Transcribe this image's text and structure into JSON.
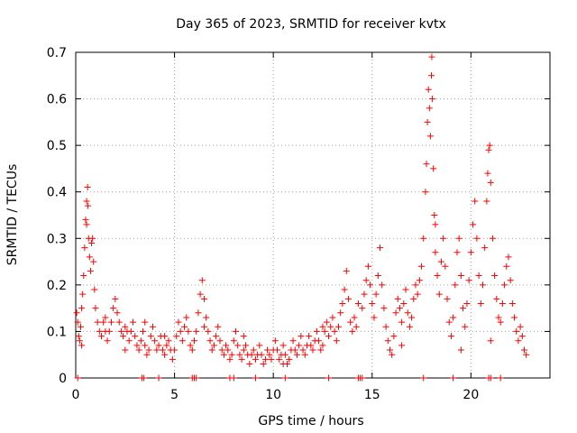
{
  "chart_data": {
    "type": "scatter",
    "title": "Day 365 of 2023, SRMTID for receiver kvtx",
    "xlabel": "GPS time / hours",
    "ylabel": "SRMTID / TECUs",
    "xlim": [
      0,
      24
    ],
    "ylim": [
      0,
      0.7
    ],
    "xticks": [
      0,
      5,
      10,
      15,
      20
    ],
    "yticks": [
      0,
      0.1,
      0.2,
      0.3,
      0.4,
      0.5,
      0.6,
      0.7
    ],
    "xtick_labels": [
      "0",
      "5",
      "10",
      "15",
      "20"
    ],
    "ytick_labels": [
      "0",
      "0.1",
      "0.2",
      "0.3",
      "0.4",
      "0.5",
      "0.6",
      "0.7"
    ],
    "grid": true,
    "marker": "+",
    "series": [
      {
        "name": "SRMTID",
        "color": "#ff0000",
        "points": [
          [
            0.05,
            0.14
          ],
          [
            0.1,
            0.12
          ],
          [
            0.15,
            0.09
          ],
          [
            0.2,
            0.08
          ],
          [
            0.25,
            0.11
          ],
          [
            0.3,
            0.15
          ],
          [
            0.35,
            0.18
          ],
          [
            0.4,
            0.22
          ],
          [
            0.45,
            0.28
          ],
          [
            0.5,
            0.34
          ],
          [
            0.55,
            0.38
          ],
          [
            0.6,
            0.41
          ],
          [
            0.62,
            0.37
          ],
          [
            0.65,
            0.3
          ],
          [
            0.7,
            0.26
          ],
          [
            0.75,
            0.23
          ],
          [
            0.8,
            0.29
          ],
          [
            0.85,
            0.3
          ],
          [
            0.9,
            0.25
          ],
          [
            0.95,
            0.19
          ],
          [
            1.0,
            0.15
          ],
          [
            1.1,
            0.12
          ],
          [
            1.2,
            0.1
          ],
          [
            1.3,
            0.09
          ],
          [
            1.4,
            0.12
          ],
          [
            1.5,
            0.1
          ],
          [
            1.6,
            0.08
          ],
          [
            1.7,
            0.1
          ],
          [
            1.8,
            0.12
          ],
          [
            1.9,
            0.15
          ],
          [
            2.0,
            0.17
          ],
          [
            2.1,
            0.14
          ],
          [
            2.2,
            0.12
          ],
          [
            2.3,
            0.1
          ],
          [
            2.4,
            0.09
          ],
          [
            2.5,
            0.11
          ],
          [
            2.6,
            0.1
          ],
          [
            2.7,
            0.08
          ],
          [
            2.8,
            0.1
          ],
          [
            2.9,
            0.12
          ],
          [
            3.0,
            0.09
          ],
          [
            3.1,
            0.07
          ],
          [
            3.2,
            0.06
          ],
          [
            3.3,
            0.08
          ],
          [
            3.4,
            0.1
          ],
          [
            3.5,
            0.07
          ],
          [
            3.6,
            0.05
          ],
          [
            3.7,
            0.06
          ],
          [
            3.8,
            0.09
          ],
          [
            3.9,
            0.11
          ],
          [
            4.0,
            0.08
          ],
          [
            4.1,
            0.06
          ],
          [
            4.2,
            0.07
          ],
          [
            4.3,
            0.09
          ],
          [
            4.4,
            0.06
          ],
          [
            4.5,
            0.05
          ],
          [
            4.6,
            0.07
          ],
          [
            4.7,
            0.08
          ],
          [
            4.8,
            0.06
          ],
          [
            4.9,
            0.04
          ],
          [
            5.0,
            0.06
          ],
          [
            5.1,
            0.09
          ],
          [
            5.2,
            0.12
          ],
          [
            5.3,
            0.1
          ],
          [
            5.4,
            0.08
          ],
          [
            5.5,
            0.11
          ],
          [
            5.6,
            0.13
          ],
          [
            5.7,
            0.1
          ],
          [
            5.8,
            0.07
          ],
          [
            5.9,
            0.06
          ],
          [
            6.0,
            0.08
          ],
          [
            6.1,
            0.1
          ],
          [
            6.2,
            0.14
          ],
          [
            6.3,
            0.18
          ],
          [
            6.4,
            0.21
          ],
          [
            6.5,
            0.17
          ],
          [
            6.6,
            0.13
          ],
          [
            6.7,
            0.1
          ],
          [
            6.8,
            0.08
          ],
          [
            6.9,
            0.06
          ],
          [
            7.0,
            0.07
          ],
          [
            7.1,
            0.09
          ],
          [
            7.2,
            0.11
          ],
          [
            7.3,
            0.08
          ],
          [
            7.4,
            0.06
          ],
          [
            7.5,
            0.05
          ],
          [
            7.6,
            0.07
          ],
          [
            7.7,
            0.06
          ],
          [
            7.8,
            0.04
          ],
          [
            7.9,
            0.05
          ],
          [
            8.0,
            0.08
          ],
          [
            8.1,
            0.1
          ],
          [
            8.2,
            0.07
          ],
          [
            8.3,
            0.05
          ],
          [
            8.4,
            0.04
          ],
          [
            8.5,
            0.06
          ],
          [
            8.6,
            0.07
          ],
          [
            8.7,
            0.05
          ],
          [
            8.8,
            0.03
          ],
          [
            8.9,
            0.05
          ],
          [
            9.0,
            0.06
          ],
          [
            9.1,
            0.04
          ],
          [
            9.2,
            0.05
          ],
          [
            9.3,
            0.07
          ],
          [
            9.4,
            0.05
          ],
          [
            9.5,
            0.03
          ],
          [
            9.6,
            0.04
          ],
          [
            9.7,
            0.06
          ],
          [
            9.8,
            0.05
          ],
          [
            9.9,
            0.04
          ],
          [
            10.0,
            0.06
          ],
          [
            10.1,
            0.08
          ],
          [
            10.2,
            0.06
          ],
          [
            10.3,
            0.04
          ],
          [
            10.4,
            0.05
          ],
          [
            10.5,
            0.07
          ],
          [
            10.6,
            0.05
          ],
          [
            10.7,
            0.03
          ],
          [
            10.8,
            0.04
          ],
          [
            10.9,
            0.06
          ],
          [
            11.0,
            0.08
          ],
          [
            11.1,
            0.06
          ],
          [
            11.2,
            0.05
          ],
          [
            11.3,
            0.07
          ],
          [
            11.4,
            0.09
          ],
          [
            11.5,
            0.06
          ],
          [
            11.6,
            0.05
          ],
          [
            11.7,
            0.07
          ],
          [
            11.8,
            0.09
          ],
          [
            11.9,
            0.07
          ],
          [
            12.0,
            0.06
          ],
          [
            12.1,
            0.08
          ],
          [
            12.2,
            0.1
          ],
          [
            12.3,
            0.08
          ],
          [
            12.4,
            0.06
          ],
          [
            12.5,
            0.07
          ],
          [
            12.6,
            0.1
          ],
          [
            12.7,
            0.12
          ],
          [
            12.8,
            0.09
          ],
          [
            12.9,
            0.11
          ],
          [
            13.0,
            0.13
          ],
          [
            13.1,
            0.1
          ],
          [
            13.2,
            0.08
          ],
          [
            13.3,
            0.11
          ],
          [
            13.4,
            0.14
          ],
          [
            13.5,
            0.16
          ],
          [
            13.6,
            0.19
          ],
          [
            13.7,
            0.23
          ],
          [
            13.8,
            0.17
          ],
          [
            13.9,
            0.12
          ],
          [
            14.0,
            0.1
          ],
          [
            14.1,
            0.13
          ],
          [
            14.2,
            0.11
          ],
          [
            14.5,
            0.15
          ],
          [
            14.6,
            0.18
          ],
          [
            14.7,
            0.21
          ],
          [
            14.8,
            0.24
          ],
          [
            14.9,
            0.2
          ],
          [
            15.0,
            0.16
          ],
          [
            15.1,
            0.13
          ],
          [
            15.2,
            0.18
          ],
          [
            15.3,
            0.22
          ],
          [
            15.4,
            0.28
          ],
          [
            15.5,
            0.2
          ],
          [
            15.6,
            0.15
          ],
          [
            15.7,
            0.11
          ],
          [
            15.8,
            0.08
          ],
          [
            15.9,
            0.06
          ],
          [
            16.0,
            0.05
          ],
          [
            16.1,
            0.09
          ],
          [
            16.2,
            0.14
          ],
          [
            16.3,
            0.17
          ],
          [
            16.4,
            0.15
          ],
          [
            16.5,
            0.12
          ],
          [
            16.6,
            0.16
          ],
          [
            16.7,
            0.19
          ],
          [
            16.8,
            0.14
          ],
          [
            16.9,
            0.11
          ],
          [
            17.0,
            0.13
          ],
          [
            17.1,
            0.17
          ],
          [
            17.2,
            0.2
          ],
          [
            17.3,
            0.18
          ],
          [
            17.4,
            0.21
          ],
          [
            17.5,
            0.24
          ],
          [
            17.6,
            0.3
          ],
          [
            17.7,
            0.4
          ],
          [
            17.75,
            0.46
          ],
          [
            17.8,
            0.55
          ],
          [
            17.85,
            0.62
          ],
          [
            17.9,
            0.58
          ],
          [
            17.95,
            0.52
          ],
          [
            18.0,
            0.65
          ],
          [
            18.02,
            0.69
          ],
          [
            18.05,
            0.6
          ],
          [
            18.1,
            0.45
          ],
          [
            18.15,
            0.35
          ],
          [
            18.2,
            0.27
          ],
          [
            18.3,
            0.22
          ],
          [
            18.4,
            0.18
          ],
          [
            18.5,
            0.25
          ],
          [
            18.6,
            0.3
          ],
          [
            18.7,
            0.24
          ],
          [
            18.8,
            0.17
          ],
          [
            18.9,
            0.12
          ],
          [
            19.0,
            0.09
          ],
          [
            19.1,
            0.13
          ],
          [
            19.2,
            0.2
          ],
          [
            19.3,
            0.27
          ],
          [
            19.4,
            0.3
          ],
          [
            19.5,
            0.22
          ],
          [
            19.6,
            0.15
          ],
          [
            19.7,
            0.11
          ],
          [
            19.8,
            0.16
          ],
          [
            19.9,
            0.21
          ],
          [
            20.0,
            0.27
          ],
          [
            20.1,
            0.33
          ],
          [
            20.2,
            0.38
          ],
          [
            20.3,
            0.3
          ],
          [
            20.4,
            0.22
          ],
          [
            20.5,
            0.16
          ],
          [
            20.6,
            0.2
          ],
          [
            20.7,
            0.28
          ],
          [
            20.8,
            0.38
          ],
          [
            20.85,
            0.44
          ],
          [
            20.9,
            0.49
          ],
          [
            20.95,
            0.5
          ],
          [
            21.0,
            0.42
          ],
          [
            21.1,
            0.3
          ],
          [
            21.2,
            0.22
          ],
          [
            21.3,
            0.17
          ],
          [
            21.4,
            0.13
          ],
          [
            21.5,
            0.12
          ],
          [
            21.6,
            0.16
          ],
          [
            21.7,
            0.2
          ],
          [
            21.8,
            0.24
          ],
          [
            21.9,
            0.26
          ],
          [
            22.0,
            0.21
          ],
          [
            22.1,
            0.16
          ],
          [
            22.2,
            0.13
          ],
          [
            22.3,
            0.1
          ],
          [
            22.4,
            0.08
          ],
          [
            22.5,
            0.11
          ],
          [
            22.6,
            0.09
          ],
          [
            22.7,
            0.06
          ],
          [
            22.8,
            0.05
          ],
          [
            0.3,
            0.07
          ],
          [
            1.5,
            0.13
          ],
          [
            2.5,
            0.06
          ],
          [
            3.5,
            0.12
          ],
          [
            4.5,
            0.09
          ],
          [
            6.5,
            0.11
          ],
          [
            8.5,
            0.09
          ],
          [
            10.5,
            0.03
          ],
          [
            12.5,
            0.11
          ],
          [
            14.3,
            0.16
          ],
          [
            16.5,
            0.07
          ],
          [
            19.5,
            0.06
          ],
          [
            21.0,
            0.08
          ],
          [
            0.55,
            0.33
          ],
          [
            18.2,
            0.33
          ],
          [
            0.1,
            0.0
          ],
          [
            3.35,
            0.0
          ],
          [
            3.45,
            0.0
          ],
          [
            4.2,
            0.0
          ],
          [
            5.9,
            0.0
          ],
          [
            6.0,
            0.0
          ],
          [
            6.1,
            0.0
          ],
          [
            7.8,
            0.0
          ],
          [
            8.0,
            0.0
          ],
          [
            9.1,
            0.0
          ],
          [
            10.6,
            0.0
          ],
          [
            12.8,
            0.0
          ],
          [
            14.3,
            0.0
          ],
          [
            14.4,
            0.0
          ],
          [
            14.5,
            0.0
          ],
          [
            17.6,
            0.0
          ],
          [
            19.1,
            0.0
          ],
          [
            20.9,
            0.0
          ],
          [
            21.0,
            0.0
          ],
          [
            21.5,
            0.0
          ]
        ]
      }
    ]
  }
}
